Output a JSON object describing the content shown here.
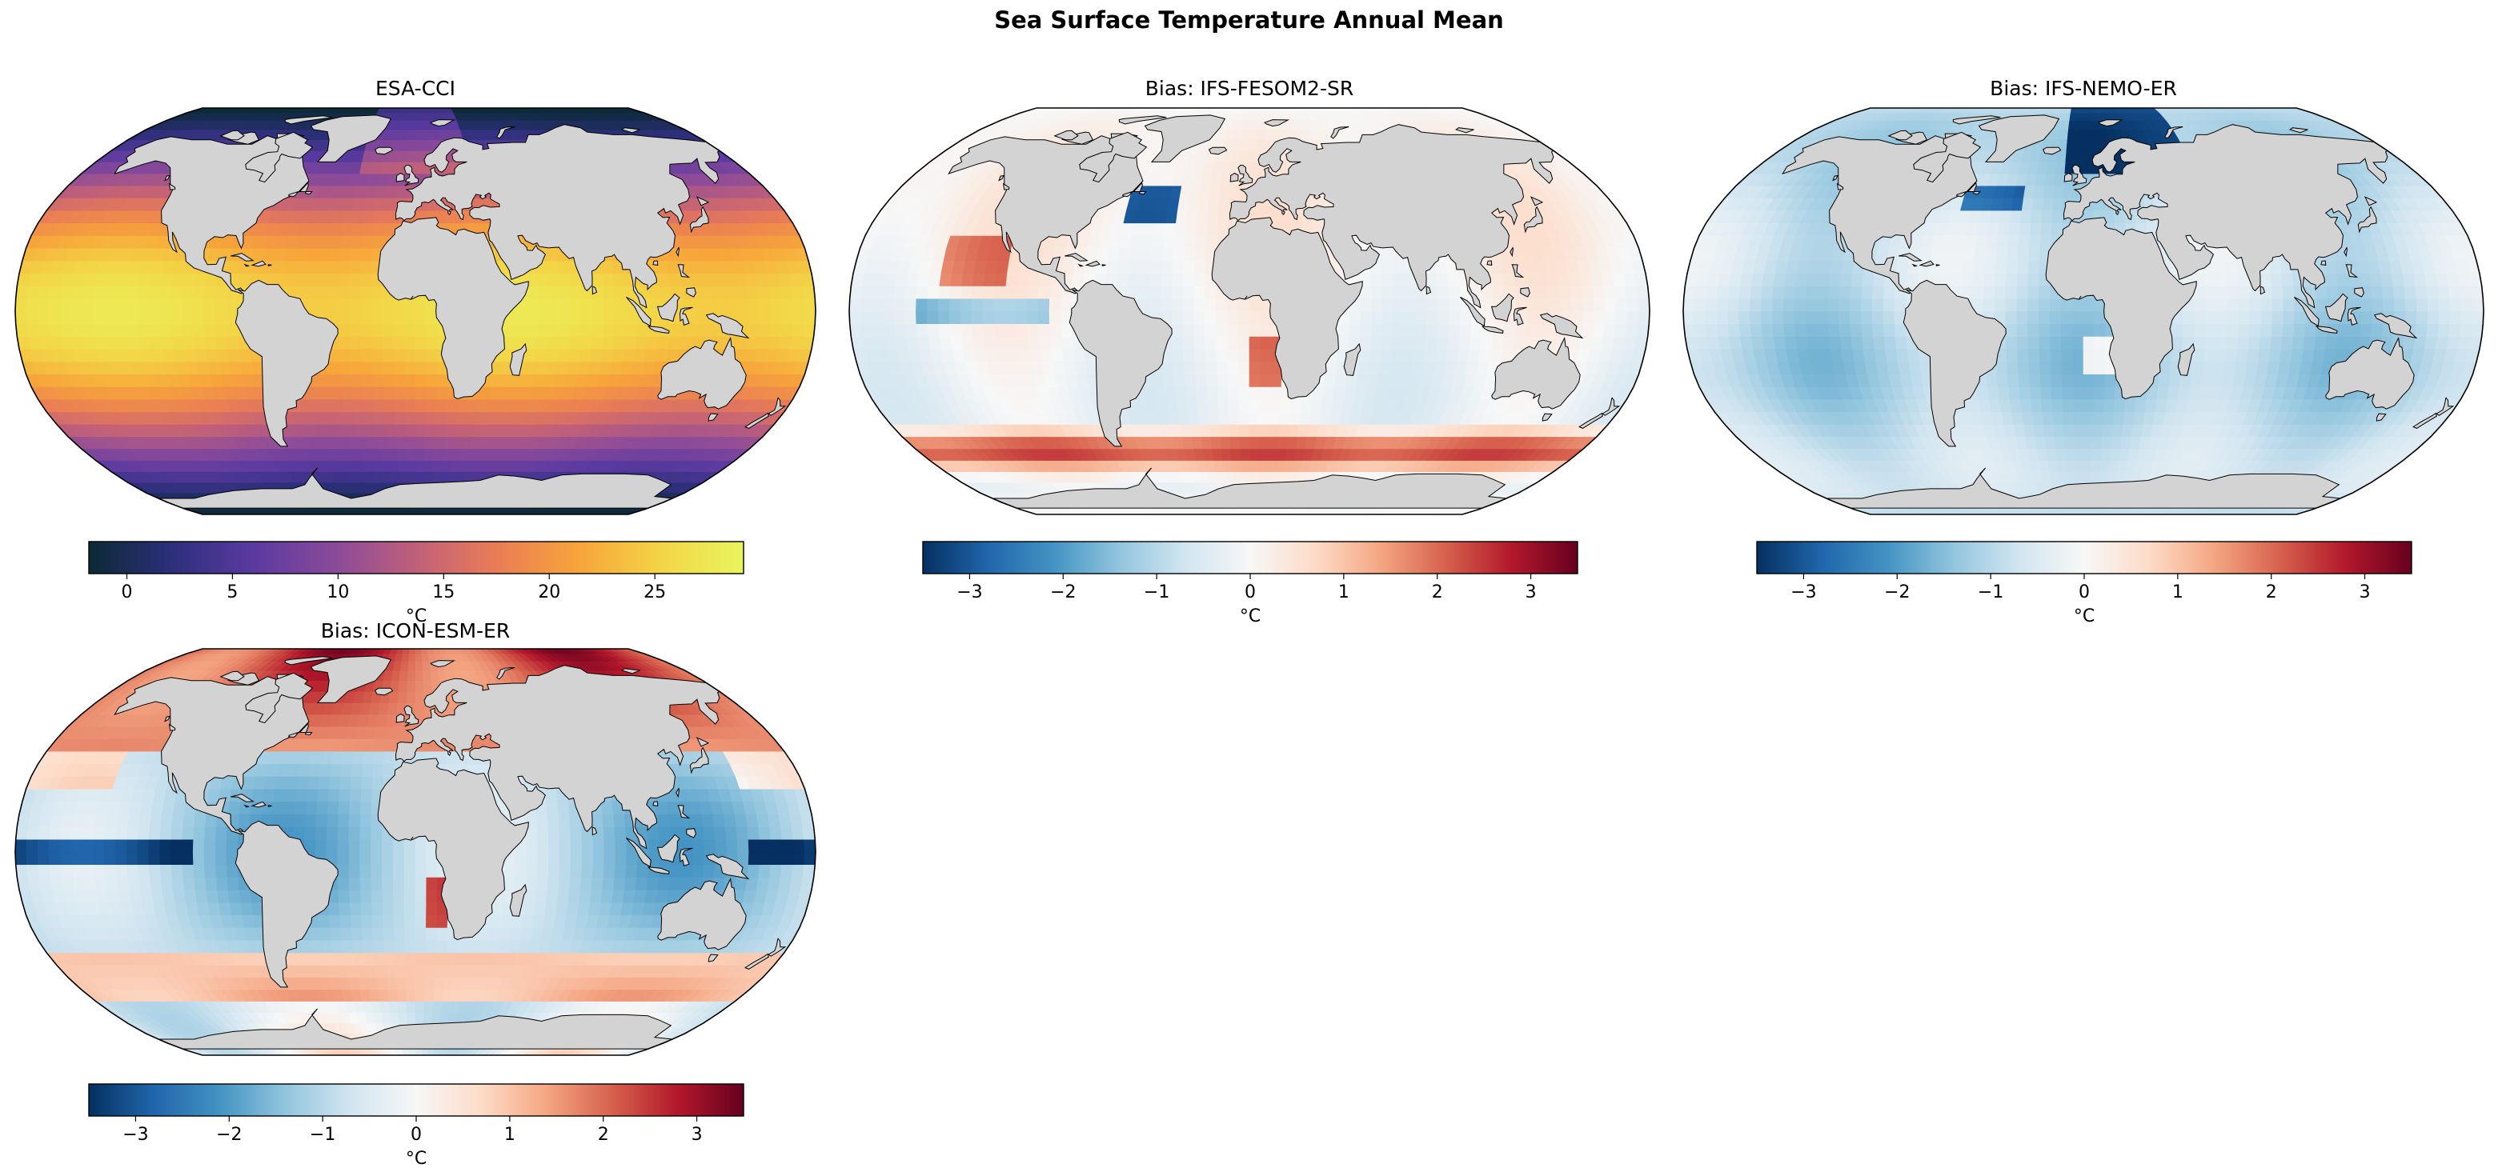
{
  "figure": {
    "title": "Sea Surface Temperature Annual Mean"
  },
  "panels": [
    {
      "title": "ESA-CCI",
      "colormap": "thermal",
      "colors": [
        "#0b2a36",
        "#2c2f7a",
        "#5a3aa0",
        "#8a4a9a",
        "#c0607a",
        "#ea7d55",
        "#f7a53a",
        "#f3d546",
        "#e9f55e"
      ],
      "colorbar": {
        "ticks": [
          "0",
          "5",
          "10",
          "15",
          "20",
          "25"
        ],
        "tick_values": [
          0,
          5,
          10,
          15,
          20,
          25
        ],
        "range": [
          -1.8,
          29.2
        ],
        "unit": "°C"
      }
    },
    {
      "title": "Bias: IFS-FESOM2-SR",
      "colormap": "RdBu_r",
      "colors": [
        "#053061",
        "#2166ac",
        "#4393c3",
        "#92c5de",
        "#d1e5f0",
        "#f7f7f7",
        "#fddbc7",
        "#f4a582",
        "#d6604d",
        "#b2182b",
        "#67001f"
      ],
      "colorbar": {
        "ticks": [
          "−3",
          "−2",
          "−1",
          "0",
          "1",
          "2",
          "3"
        ],
        "tick_values": [
          -3,
          -2,
          -1,
          0,
          1,
          2,
          3
        ],
        "range": [
          -3.5,
          3.5
        ],
        "unit": "°C"
      }
    },
    {
      "title": "Bias: IFS-NEMO-ER",
      "colormap": "RdBu_r",
      "colors": [
        "#053061",
        "#2166ac",
        "#4393c3",
        "#92c5de",
        "#d1e5f0",
        "#f7f7f7",
        "#fddbc7",
        "#f4a582",
        "#d6604d",
        "#b2182b",
        "#67001f"
      ],
      "colorbar": {
        "ticks": [
          "−3",
          "−2",
          "−1",
          "0",
          "1",
          "2",
          "3"
        ],
        "tick_values": [
          -3,
          -2,
          -1,
          0,
          1,
          2,
          3
        ],
        "range": [
          -3.5,
          3.5
        ],
        "unit": "°C"
      }
    },
    {
      "title": "Bias: ICON-ESM-ER",
      "colormap": "RdBu_r",
      "colors": [
        "#053061",
        "#2166ac",
        "#4393c3",
        "#92c5de",
        "#d1e5f0",
        "#f7f7f7",
        "#fddbc7",
        "#f4a582",
        "#d6604d",
        "#b2182b",
        "#67001f"
      ],
      "colorbar": {
        "ticks": [
          "−3",
          "−2",
          "−1",
          "0",
          "1",
          "2",
          "3"
        ],
        "tick_values": [
          -3,
          -2,
          -1,
          0,
          1,
          2,
          3
        ],
        "range": [
          -3.5,
          3.5
        ],
        "unit": "°C"
      }
    }
  ],
  "land_color": "#d3d3d3"
}
